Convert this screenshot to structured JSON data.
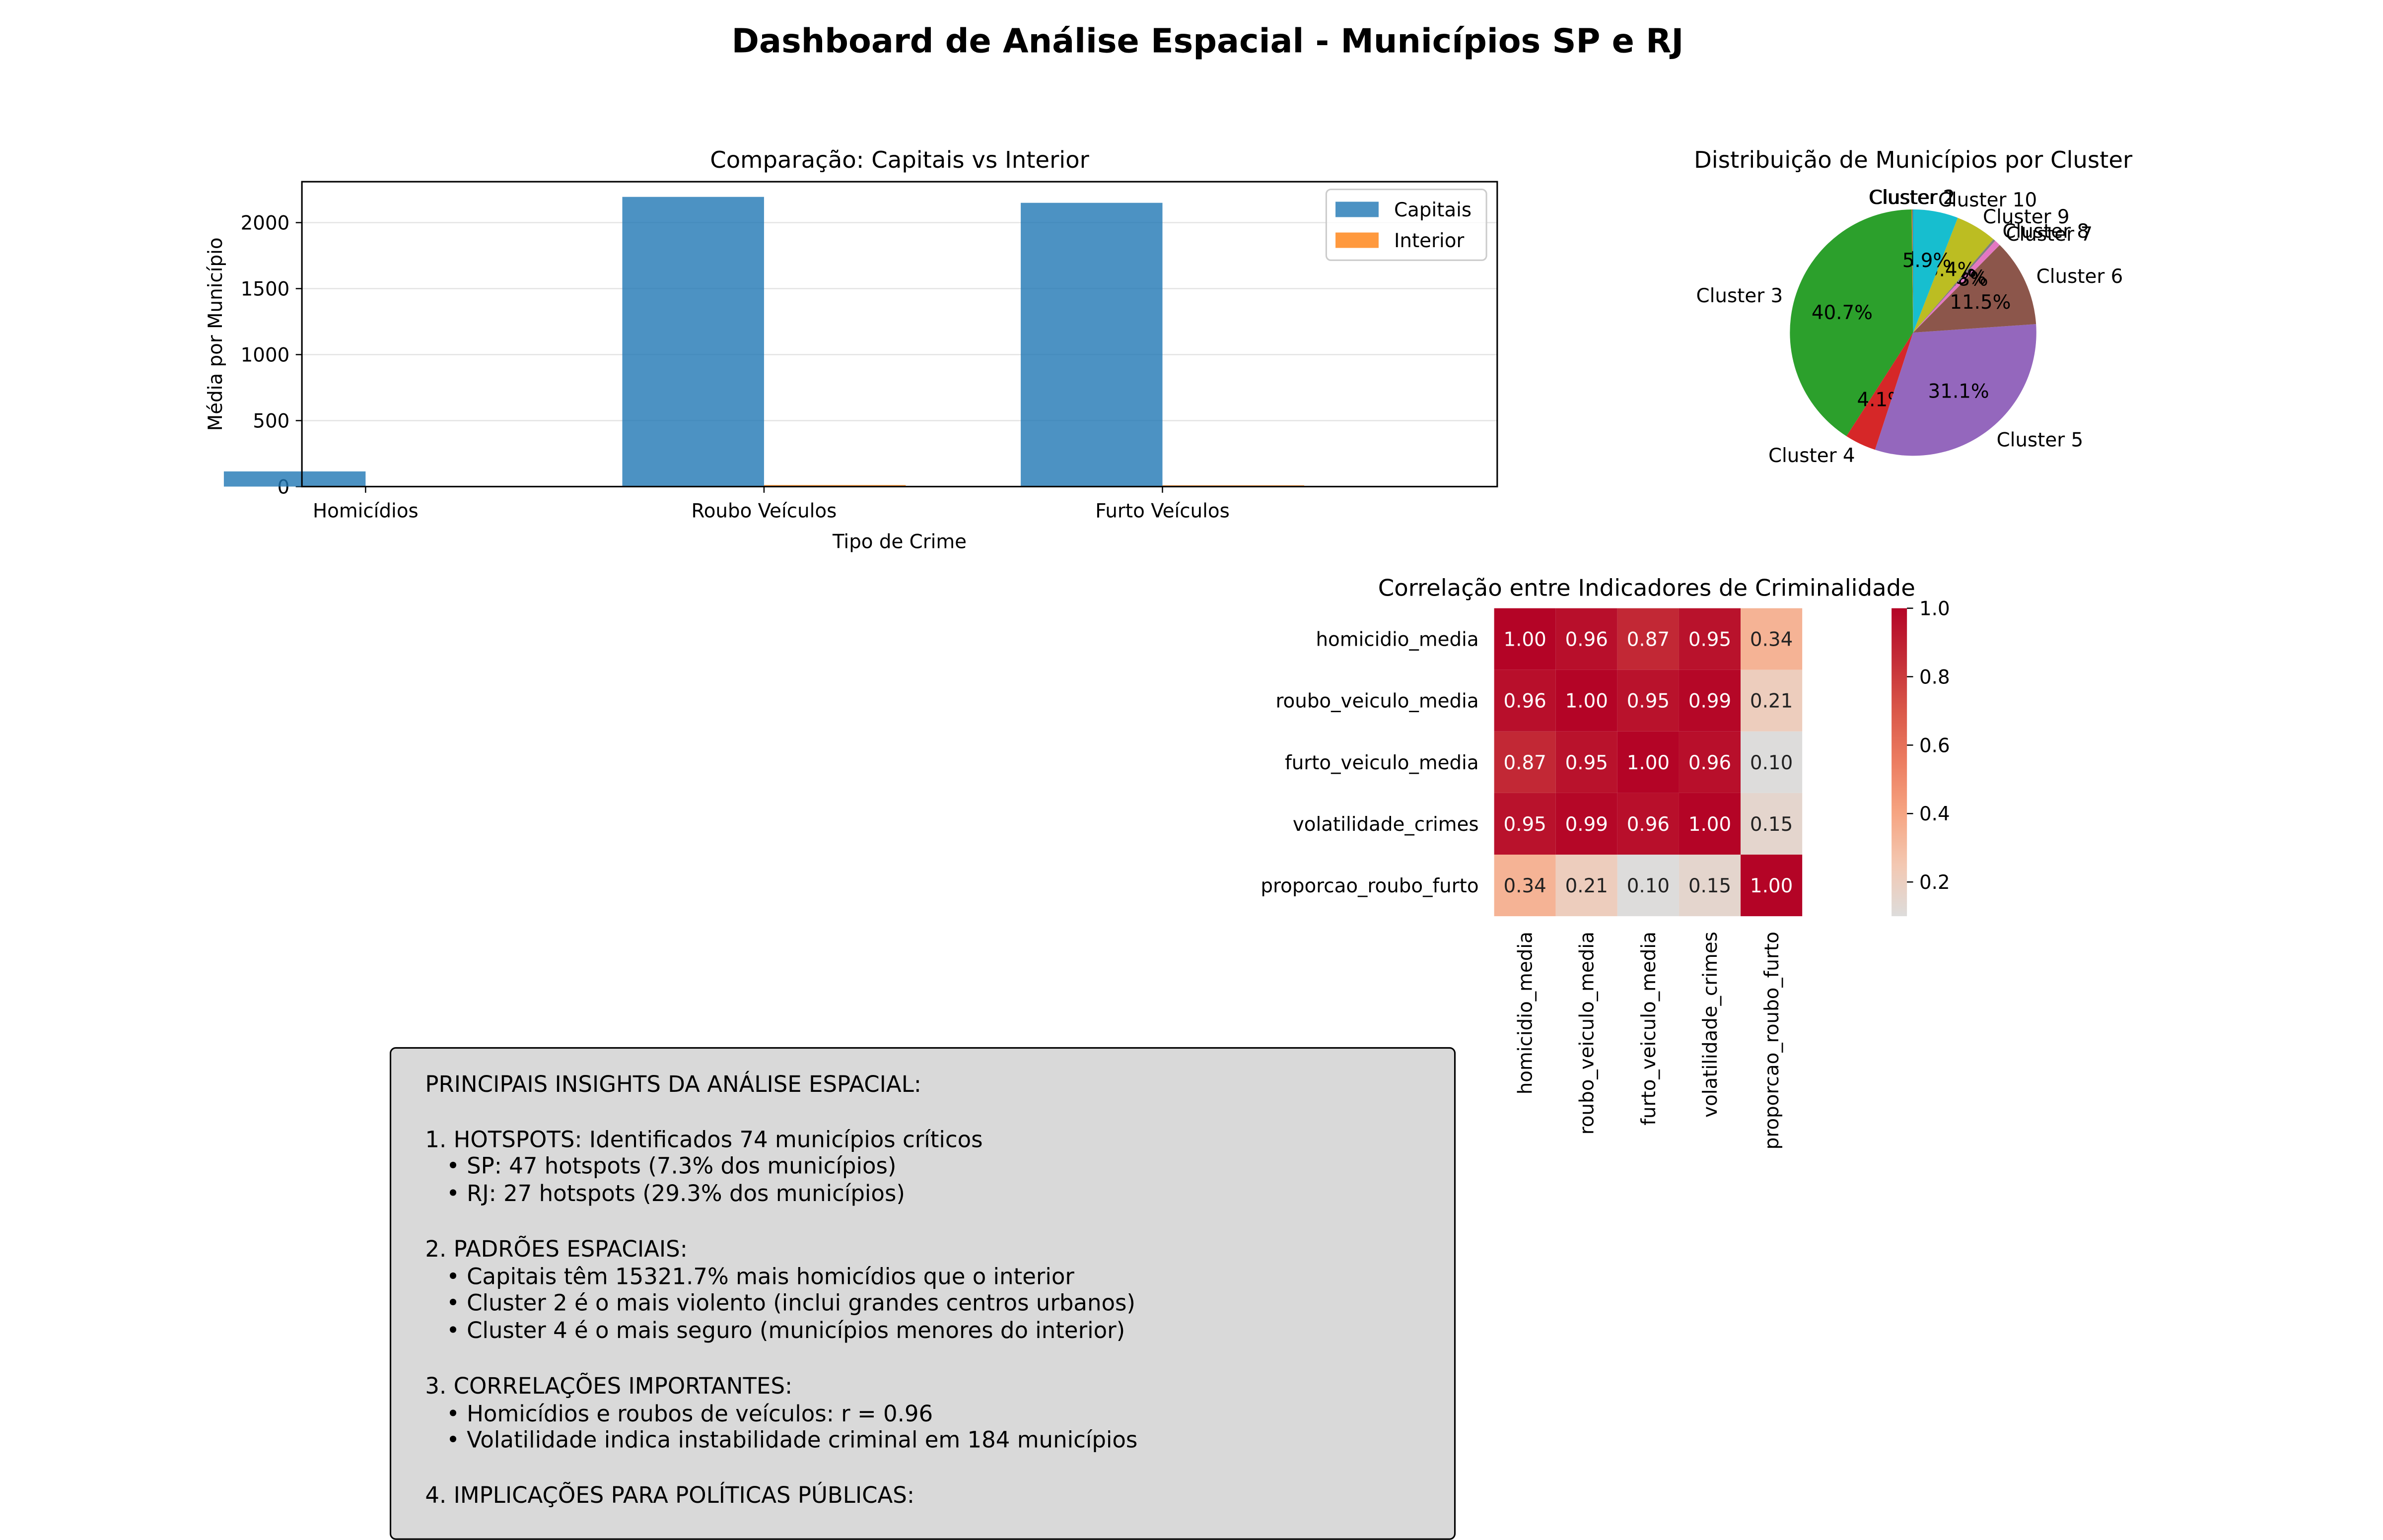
{
  "title": "Dashboard de Análise Espacial - Municípios SP e RJ",
  "chart_data": [
    {
      "type": "bar",
      "title": "Comparação: Capitais vs Interior",
      "xlabel": "Tipo de Crime",
      "ylabel": "Média por Município",
      "categories": [
        "Homicídios",
        "Roubo Veículos",
        "Furto Veículos"
      ],
      "series": [
        {
          "name": "Capitais",
          "values": [
            115,
            2195,
            2150
          ],
          "color": "#1f77b4"
        },
        {
          "name": "Interior",
          "values": [
            0.75,
            12,
            10
          ],
          "color": "#ff7f0e"
        }
      ],
      "ylim": [
        0,
        2310
      ],
      "yticks": [
        0,
        500,
        1000,
        1500,
        2000
      ],
      "grid": "y",
      "legend": "top-right"
    },
    {
      "type": "pie",
      "title": "Distribuição de Municípios por Cluster",
      "slices": [
        {
          "label": "Cluster 1",
          "pct_label": "0.1%",
          "value": 0.1,
          "color": "#1f77b4"
        },
        {
          "label": "Cluster 2",
          "pct_label": "0.1%",
          "value": 0.1,
          "color": "#ff7f0e"
        },
        {
          "label": "Cluster 3",
          "pct_label": "40.7%",
          "value": 40.7,
          "color": "#2ca02c"
        },
        {
          "label": "Cluster 4",
          "pct_label": "4.1%",
          "value": 4.1,
          "color": "#d62728"
        },
        {
          "label": "Cluster 5",
          "pct_label": "31.1%",
          "value": 31.1,
          "color": "#9467bd"
        },
        {
          "label": "Cluster 6",
          "pct_label": "11.5%",
          "value": 11.5,
          "color": "#8c564b"
        },
        {
          "label": "Cluster 7",
          "pct_label": "0.8%",
          "value": 0.8,
          "color": "#e377c2"
        },
        {
          "label": "Cluster 8",
          "pct_label": "0.3%",
          "value": 0.3,
          "color": "#7f7f7f"
        },
        {
          "label": "Cluster 9",
          "pct_label": "5.4%",
          "value": 5.4,
          "color": "#bcbd22"
        },
        {
          "label": "Cluster 10",
          "pct_label": "5.9%",
          "value": 5.9,
          "color": "#17becf"
        }
      ]
    },
    {
      "type": "heatmap",
      "title": "Correlação entre Indicadores de Criminalidade",
      "labels": [
        "homicidio_media",
        "roubo_veiculo_media",
        "furto_veiculo_media",
        "volatilidade_crimes",
        "proporcao_roubo_furto"
      ],
      "values": [
        [
          1.0,
          0.96,
          0.87,
          0.95,
          0.34
        ],
        [
          0.96,
          1.0,
          0.95,
          0.99,
          0.21
        ],
        [
          0.87,
          0.95,
          1.0,
          0.96,
          0.1
        ],
        [
          0.95,
          0.99,
          0.96,
          1.0,
          0.15
        ],
        [
          0.34,
          0.21,
          0.1,
          0.15,
          1.0
        ]
      ],
      "colorbar_ticks": [
        "1.0",
        "0.8",
        "0.6",
        "0.4",
        "0.2"
      ],
      "colorbar_range": [
        0.1,
        1.0
      ],
      "colormap": "coolwarm"
    }
  ],
  "insights": {
    "lines": [
      "PRINCIPAIS INSIGHTS DA ANÁLISE ESPACIAL:",
      "",
      "1. HOTSPOTS: Identificados 74 municípios críticos",
      "   • SP: 47 hotspots (7.3% dos municípios)",
      "   • RJ: 27 hotspots (29.3% dos municípios)",
      "",
      "2. PADRÕES ESPACIAIS:",
      "   • Capitais têm 15321.7% mais homicídios que o interior",
      "   • Cluster 2 é o mais violento (inclui grandes centros urbanos)",
      "   • Cluster 4 é o mais seguro (municípios menores do interior)",
      "",
      "3. CORRELAÇÕES IMPORTANTES:",
      "   • Homicídios e roubos de veículos: r = 0.96",
      "   • Volatilidade indica instabilidade criminal em 184 municípios",
      "",
      "4. IMPLICAÇÕES PARA POLÍTICAS PÚBLICAS:"
    ]
  }
}
